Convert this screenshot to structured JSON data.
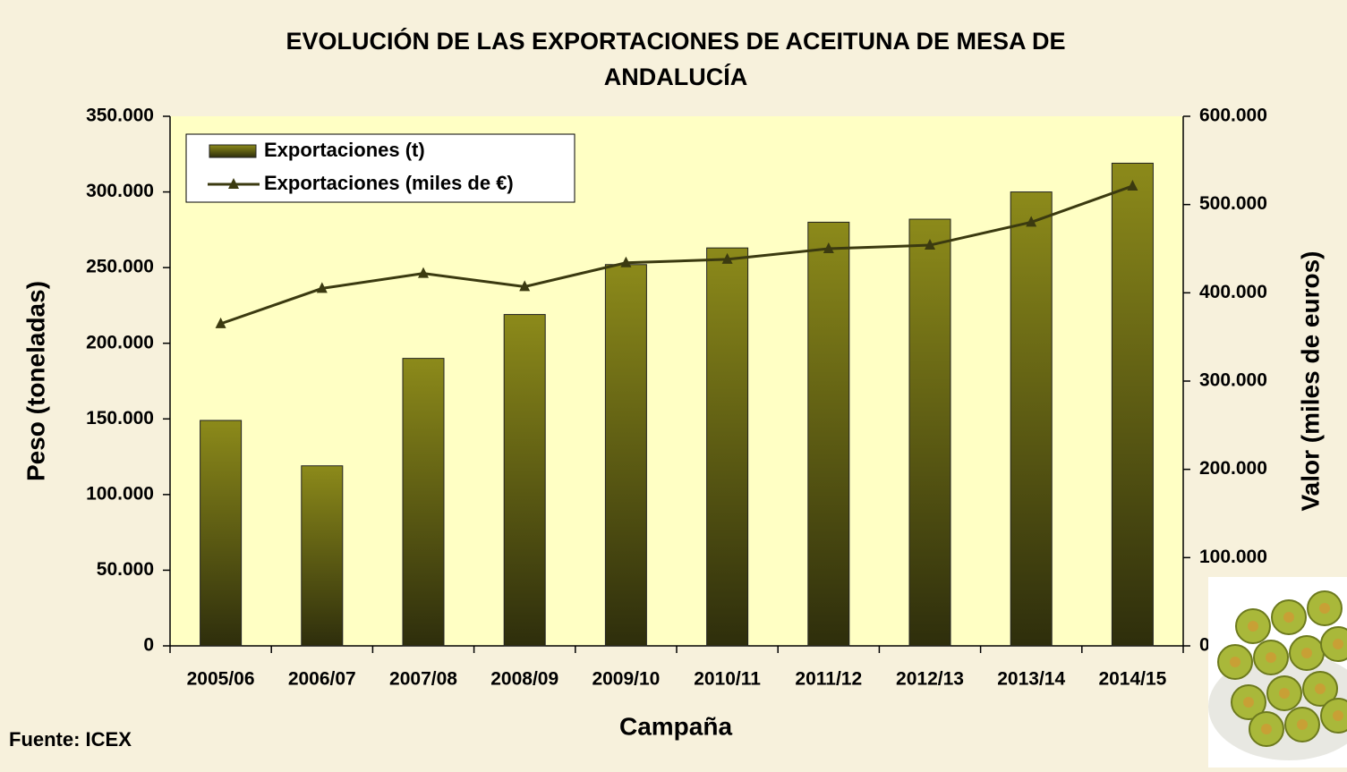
{
  "chart_data": {
    "type": "bar",
    "title": "EVOLUCIÓN DE LAS EXPORTACIONES DE ACEITUNA DE MESA DE ANDALUCÍA",
    "x_label": "Campaña",
    "y_label": "Peso (toneladas)",
    "y2_label": "Valor (miles de euros)",
    "source": "Fuente: ICEX",
    "categories": [
      "2005/06",
      "2006/07",
      "2007/08",
      "2008/09",
      "2009/10",
      "2010/11",
      "2011/12",
      "2012/13",
      "2013/14",
      "2014/15"
    ],
    "series": [
      {
        "name": "Exportaciones (t)",
        "type": "bar",
        "color": "#8c8a1a",
        "values": [
          149000,
          119000,
          190000,
          219000,
          252000,
          263000,
          280000,
          282000,
          300000,
          319000
        ]
      },
      {
        "name": "Exportaciones (miles de €)",
        "type": "line",
        "axis": "y2",
        "color": "#3b3a10",
        "values": [
          365000,
          405000,
          422000,
          407000,
          434000,
          438000,
          450000,
          454000,
          480000,
          521000
        ]
      }
    ],
    "ylim": [
      0,
      350000
    ],
    "yticks": [
      0,
      {
        "value": 50000,
        "label": "50.000"
      },
      {
        "value": 100000,
        "label": "100.000"
      },
      {
        "value": 150000,
        "label": "150.000"
      },
      {
        "value": 200000,
        "label": "200.000"
      },
      {
        "value": 250000,
        "label": "250.000"
      },
      {
        "value": 300000,
        "label": "300.000"
      },
      {
        "value": 350000,
        "label": "350.000"
      }
    ],
    "y2lim": [
      0,
      600000
    ],
    "y2ticks": [
      0,
      {
        "value": 100000,
        "label": "100.000"
      },
      {
        "value": 200000,
        "label": "200.000"
      },
      {
        "value": 300000,
        "label": "300.000"
      },
      {
        "value": 400000,
        "label": "400.000"
      },
      {
        "value": 500000,
        "label": "500.000"
      },
      {
        "value": 600000,
        "label": "600.000"
      }
    ],
    "legend": "top-left"
  }
}
